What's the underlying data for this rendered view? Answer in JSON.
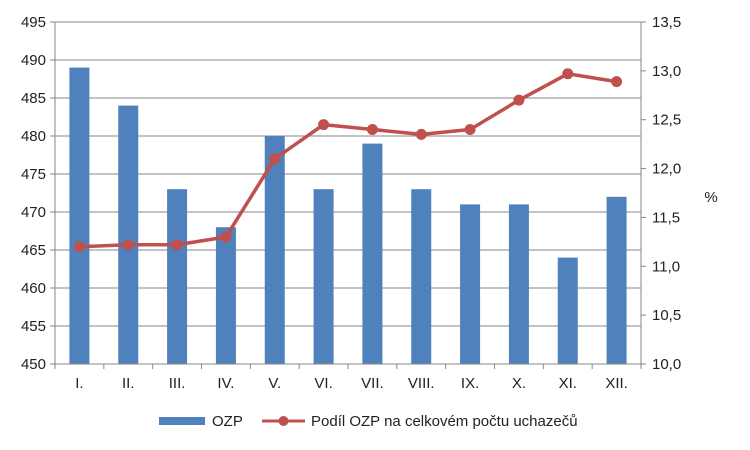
{
  "chart_data": {
    "type": "bar+line",
    "categories": [
      "I.",
      "II.",
      "III.",
      "IV.",
      "V.",
      "VI.",
      "VII.",
      "VIII.",
      "IX.",
      "X.",
      "XI.",
      "XII."
    ],
    "series": [
      {
        "name": "OZP",
        "type": "bar",
        "axis": "left",
        "color": "#4f81bd",
        "values": [
          489,
          484,
          473,
          468,
          480,
          473,
          479,
          473,
          471,
          471,
          464,
          472
        ]
      },
      {
        "name": "Podíl OZP na celkovém počtu uchazečů",
        "type": "line",
        "axis": "right",
        "color": "#c0504d",
        "marker": "circle",
        "values": [
          11.2,
          11.22,
          11.22,
          11.3,
          12.1,
          12.45,
          12.4,
          12.35,
          12.4,
          12.7,
          12.97,
          12.89
        ]
      }
    ],
    "y_left": {
      "min": 450,
      "max": 495,
      "step": 5,
      "ticks": [
        "450",
        "455",
        "460",
        "465",
        "470",
        "475",
        "480",
        "485",
        "490",
        "495"
      ]
    },
    "y_right": {
      "min": 10.0,
      "max": 13.5,
      "step": 0.5,
      "ticks": [
        "10,0",
        "10,5",
        "11,0",
        "11,5",
        "12,0",
        "12,5",
        "13,0",
        "13,5"
      ],
      "label": "%"
    },
    "grid": true,
    "legend": "bottom"
  }
}
